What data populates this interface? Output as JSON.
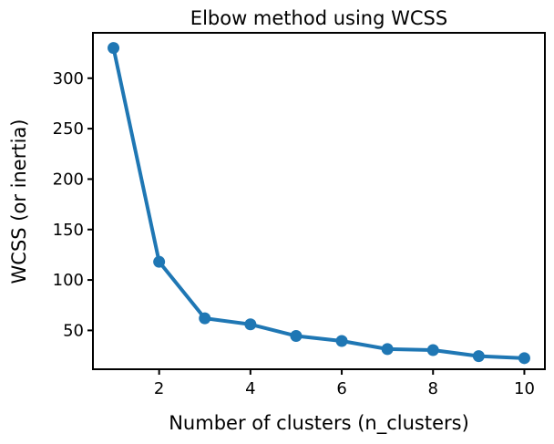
{
  "chart_data": {
    "type": "line",
    "title": "Elbow method using WCSS",
    "xlabel": "Number of clusters (n_clusters)",
    "ylabel": "WCSS (or inertia)",
    "x": [
      1,
      2,
      3,
      4,
      5,
      6,
      7,
      8,
      9,
      10
    ],
    "series": [
      {
        "values": [
          330,
          118,
          62,
          56,
          44.5,
          39.5,
          31.5,
          30.5,
          24.5,
          22.5
        ],
        "color": "#1f77b4"
      }
    ],
    "xlim": [
      0.55,
      10.45
    ],
    "ylim": [
      11.5,
      345
    ],
    "xticks": [
      2,
      4,
      6,
      8,
      10
    ],
    "yticks": [
      50,
      100,
      150,
      200,
      250,
      300
    ],
    "grid": false,
    "markers": "circle"
  }
}
